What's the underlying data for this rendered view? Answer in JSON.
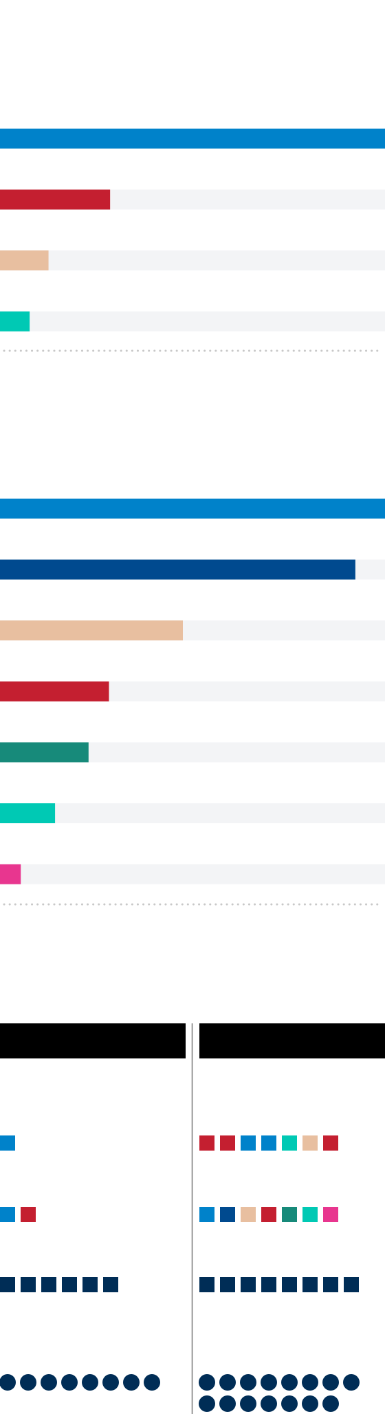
{
  "chart_data": [
    {
      "type": "bar",
      "orientation": "horizontal",
      "categories": [
        null,
        null,
        null,
        null
      ],
      "values": [
        100,
        28.6,
        12.6,
        7.7
      ],
      "colors": [
        "#0082ca",
        "#c41f30",
        "#e8bfa0",
        "#00c9b4"
      ],
      "xlim": [
        0,
        100
      ],
      "track_color": "#f3f4f6"
    },
    {
      "type": "bar",
      "orientation": "horizontal",
      "categories": [
        null,
        null,
        null,
        null,
        null,
        null,
        null
      ],
      "values": [
        100,
        92.3,
        47.5,
        28.3,
        23,
        14.3,
        5.4
      ],
      "colors": [
        "#0082ca",
        "#004a8f",
        "#e8bfa0",
        "#c41f30",
        "#178a7a",
        "#00c9b4",
        "#e8368f"
      ],
      "xlim": [
        0,
        100
      ],
      "track_color": "#f3f4f6"
    }
  ],
  "panels": [
    {
      "rows": [
        [
          "#0082ca"
        ],
        [
          "#0082ca",
          "#c41f30"
        ],
        [
          "#002d56",
          "#002d56",
          "#002d56",
          "#002d56",
          "#002d56",
          "#002d56"
        ]
      ],
      "dots": 8,
      "dot_color": "#002d56"
    },
    {
      "rows": [
        [
          "#c41f30",
          "#c41f30",
          "#0082ca",
          "#0082ca",
          "#00c9b4",
          "#e8bfa0",
          "#c41f30"
        ],
        [
          "#0082ca",
          "#004a8f",
          "#e8bfa0",
          "#c41f30",
          "#178a7a",
          "#00c9b4",
          "#e8368f"
        ],
        [
          "#002d56",
          "#002d56",
          "#002d56",
          "#002d56",
          "#002d56",
          "#002d56",
          "#002d56",
          "#002d56"
        ]
      ],
      "dots": 15,
      "dot_color": "#002d56"
    }
  ]
}
